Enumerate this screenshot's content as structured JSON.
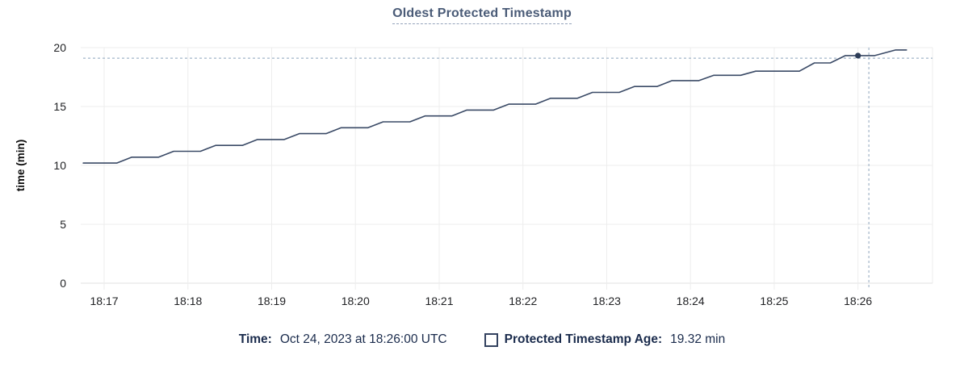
{
  "title": "Oldest Protected Timestamp",
  "legend": {
    "time_label": "Time:",
    "time_value": "Oct 24, 2023 at 18:26:00 UTC",
    "series_label": "Protected Timestamp Age:",
    "series_value": "19.32 min"
  },
  "colors": {
    "line": "#3a4a66",
    "marker": "#2c3c57",
    "crosshair": "#a2b5c8",
    "grid": "#ededed",
    "baseline": "#e0e0e0",
    "tick_label": "#1f2023",
    "axis_label": "#0c0c0c",
    "title": "#4a5b77",
    "title_underline": "#94a2ba",
    "legend_text": "#1a2b4c"
  },
  "chart_data": {
    "type": "line",
    "title": "Oldest Protected Timestamp",
    "xlabel": "",
    "ylabel": "time (min)",
    "ylim": [
      0,
      20
    ],
    "y_ticks": [
      0,
      5,
      10,
      15,
      20
    ],
    "x_domain_minutes_after_1800": [
      16.72,
      26.89
    ],
    "x_ticks": [
      {
        "t": 17,
        "label": "18:17"
      },
      {
        "t": 18,
        "label": "18:18"
      },
      {
        "t": 19,
        "label": "18:19"
      },
      {
        "t": 20,
        "label": "18:20"
      },
      {
        "t": 21,
        "label": "18:21"
      },
      {
        "t": 22,
        "label": "18:22"
      },
      {
        "t": 23,
        "label": "18:23"
      },
      {
        "t": 24,
        "label": "18:24"
      },
      {
        "t": 25,
        "label": "18:25"
      },
      {
        "t": 26,
        "label": "18:26"
      }
    ],
    "grid": true,
    "legend_position": "bottom",
    "series": [
      {
        "name": "Protected Timestamp Age",
        "unit": "min",
        "points": [
          [
            16.75,
            10.2
          ],
          [
            17.15,
            10.2
          ],
          [
            17.33,
            10.7
          ],
          [
            17.65,
            10.7
          ],
          [
            17.83,
            11.2
          ],
          [
            18.15,
            11.2
          ],
          [
            18.33,
            11.7
          ],
          [
            18.65,
            11.7
          ],
          [
            18.83,
            12.2
          ],
          [
            19.15,
            12.2
          ],
          [
            19.33,
            12.7
          ],
          [
            19.65,
            12.7
          ],
          [
            19.83,
            13.2
          ],
          [
            20.15,
            13.2
          ],
          [
            20.33,
            13.7
          ],
          [
            20.65,
            13.7
          ],
          [
            20.83,
            14.2
          ],
          [
            21.15,
            14.2
          ],
          [
            21.33,
            14.7
          ],
          [
            21.65,
            14.7
          ],
          [
            21.83,
            15.2
          ],
          [
            22.15,
            15.2
          ],
          [
            22.33,
            15.7
          ],
          [
            22.65,
            15.7
          ],
          [
            22.83,
            16.2
          ],
          [
            23.15,
            16.2
          ],
          [
            23.33,
            16.7
          ],
          [
            23.6,
            16.7
          ],
          [
            23.78,
            17.2
          ],
          [
            24.1,
            17.2
          ],
          [
            24.28,
            17.65
          ],
          [
            24.6,
            17.65
          ],
          [
            24.78,
            18.0
          ],
          [
            25.3,
            18.0
          ],
          [
            25.48,
            18.7
          ],
          [
            25.67,
            18.7
          ],
          [
            25.85,
            19.32
          ],
          [
            26.2,
            19.32
          ],
          [
            26.45,
            19.8
          ],
          [
            26.58,
            19.8
          ]
        ]
      }
    ],
    "hover_marker": {
      "t": 26.0,
      "v": 19.32,
      "time_label": "Oct 24, 2023 at 18:26:00 UTC",
      "value_label": "19.32 min"
    },
    "crosshair": {
      "t": 26.13,
      "v": 19.1
    }
  }
}
